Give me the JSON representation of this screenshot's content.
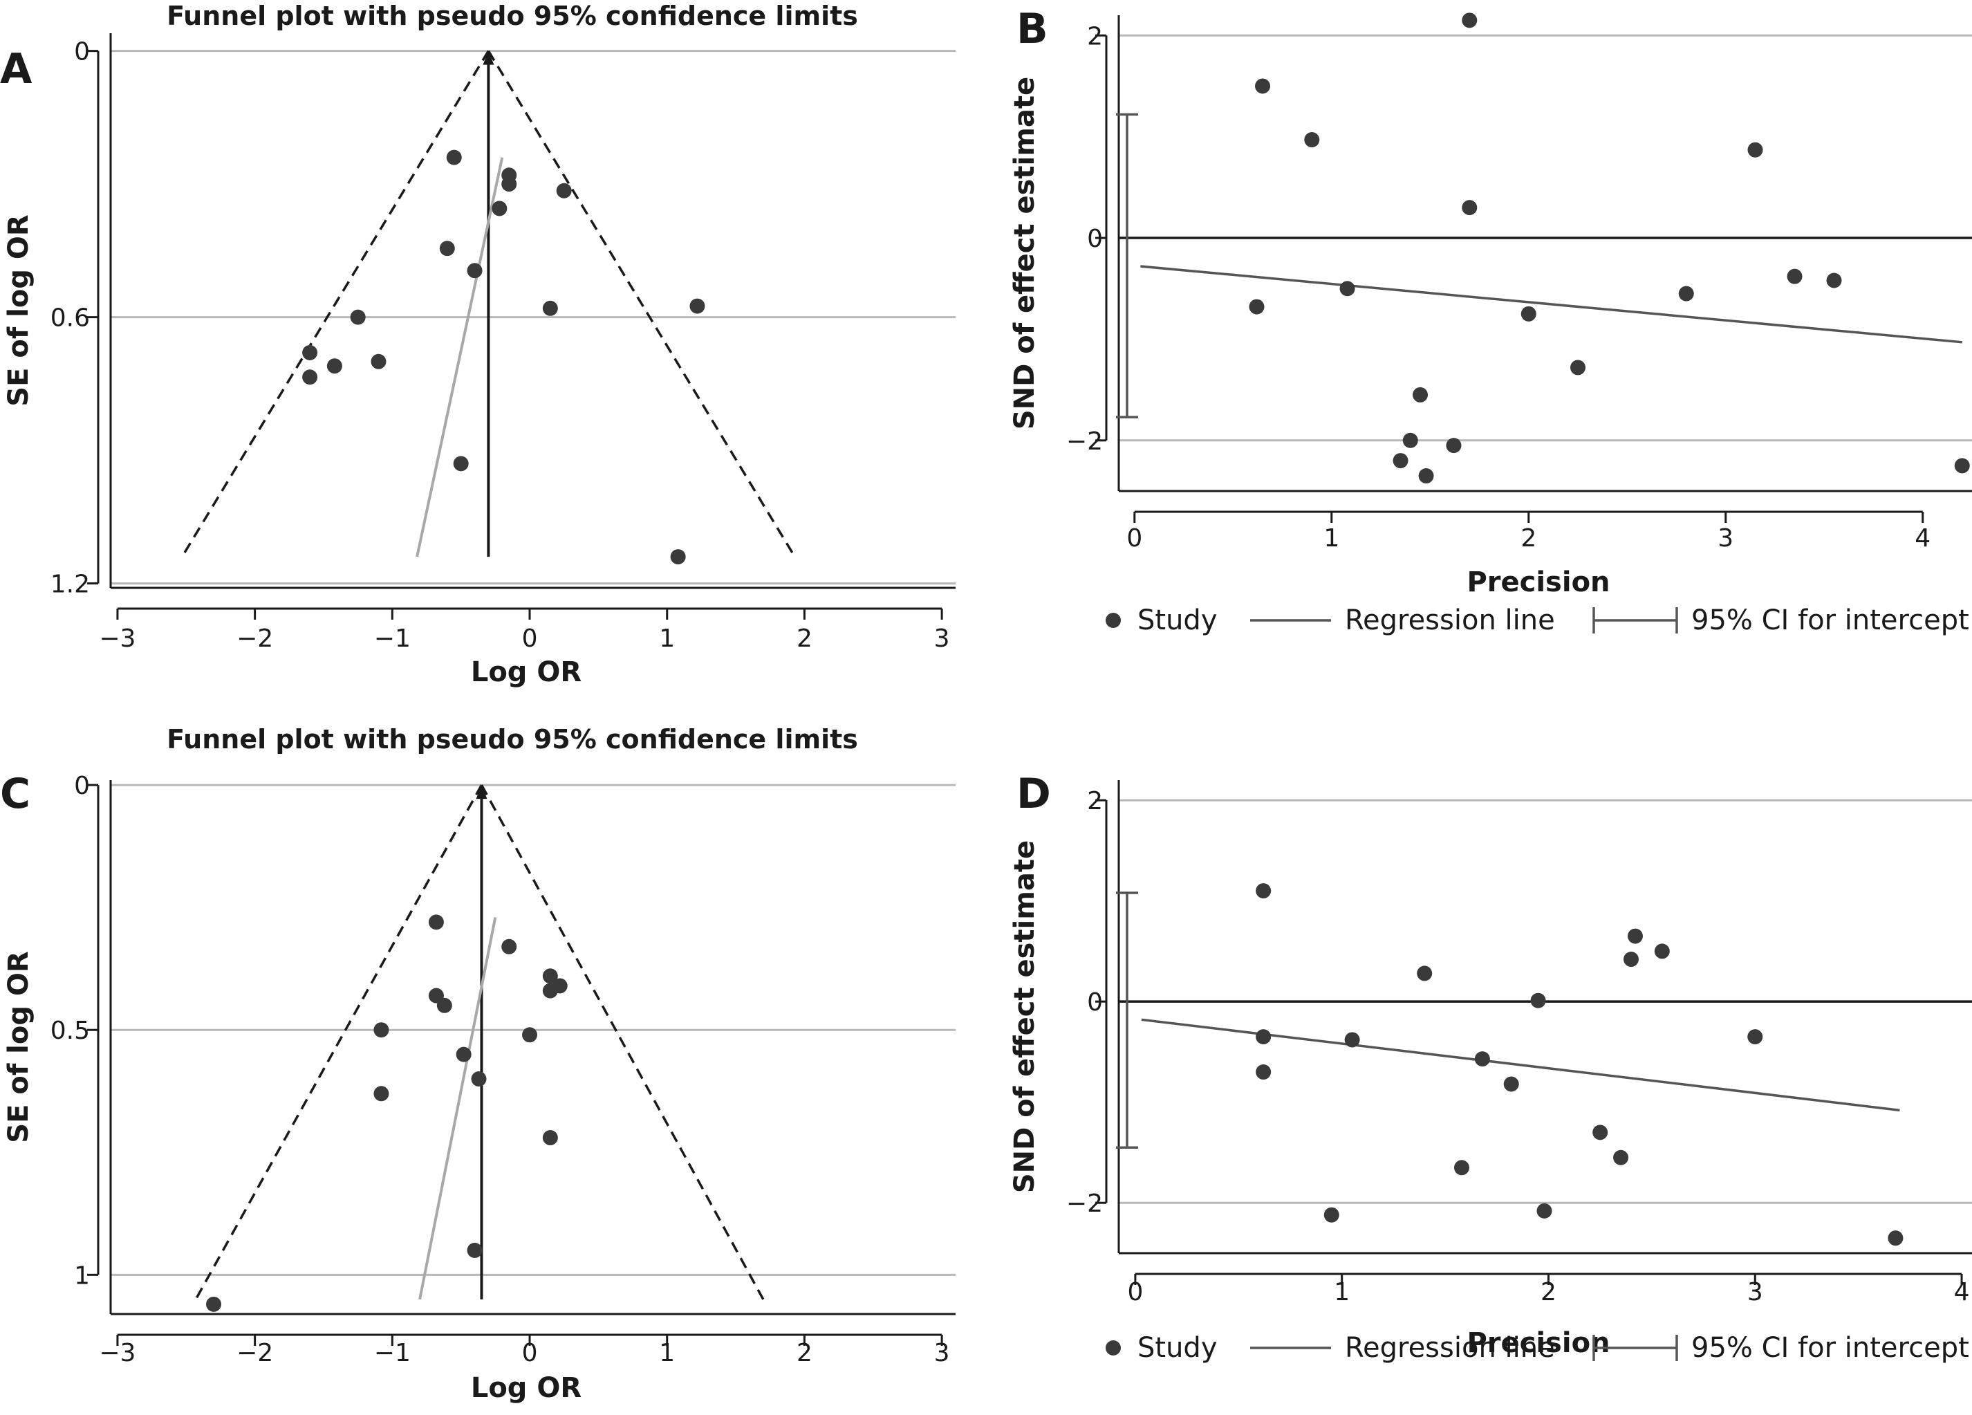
{
  "chart_data": [
    {
      "panel": "A",
      "type": "scatter",
      "title": "Funnel plot with pseudo 95% confidence limits",
      "xlabel": "Log OR",
      "ylabel": "SE of log OR",
      "xlim": [
        -3.05,
        3.1
      ],
      "ylim": [
        1.21,
        -0.04
      ],
      "xticks": [
        -3,
        -2,
        -1,
        0,
        1,
        2,
        3
      ],
      "yticks": [
        0,
        0.6,
        1.2
      ],
      "ytick_labels": [
        "0",
        "0.6",
        "1.2"
      ],
      "grid": "horizontal at y ticks",
      "pooled_log_or": -0.3,
      "funnel_apex": [
        -0.3,
        0
      ],
      "funnel_left_base": [
        -2.53,
        1.14
      ],
      "funnel_right_base": [
        1.93,
        1.14
      ],
      "vertical_line_end": 1.14,
      "regression_line": [
        [
          -0.82,
          1.14
        ],
        [
          -0.2,
          0.24
        ]
      ],
      "points": [
        [
          -1.6,
          0.68
        ],
        [
          -1.6,
          0.735
        ],
        [
          -1.42,
          0.71
        ],
        [
          -1.25,
          0.6
        ],
        [
          -1.1,
          0.7
        ],
        [
          -0.55,
          0.24
        ],
        [
          -0.6,
          0.445
        ],
        [
          -0.4,
          0.495
        ],
        [
          -0.5,
          0.93
        ],
        [
          -0.22,
          0.355
        ],
        [
          -0.15,
          0.28
        ],
        [
          -0.15,
          0.3
        ],
        [
          0.25,
          0.315
        ],
        [
          0.15,
          0.58
        ],
        [
          1.22,
          0.575
        ],
        [
          1.08,
          1.14
        ]
      ]
    },
    {
      "panel": "B",
      "type": "scatter",
      "xlabel": "Precision",
      "ylabel": "SND of effect estimate",
      "xlim": [
        -0.08,
        4.25
      ],
      "ylim": [
        -2.5,
        2.2
      ],
      "xticks": [
        0,
        1,
        2,
        3,
        4
      ],
      "yticks": [
        -2,
        0,
        2
      ],
      "ytick_labels": [
        "−2",
        "0",
        "2"
      ],
      "grid": "horizontal at ±2",
      "zero_line": 0,
      "regression_line": [
        [
          0.03,
          -0.28
        ],
        [
          4.2,
          -1.03
        ]
      ],
      "ci_intercept": [
        -1.77,
        1.22
      ],
      "points": [
        [
          0.65,
          1.5
        ],
        [
          0.9,
          0.97
        ],
        [
          1.7,
          2.15
        ],
        [
          1.7,
          0.3
        ],
        [
          3.15,
          0.87
        ],
        [
          0.62,
          -0.68
        ],
        [
          1.08,
          -0.5
        ],
        [
          2.0,
          -0.75
        ],
        [
          2.8,
          -0.55
        ],
        [
          3.35,
          -0.38
        ],
        [
          3.55,
          -0.42
        ],
        [
          2.25,
          -1.28
        ],
        [
          1.45,
          -1.55
        ],
        [
          1.4,
          -2.0
        ],
        [
          1.35,
          -2.2
        ],
        [
          1.48,
          -2.35
        ],
        [
          1.62,
          -2.05
        ],
        [
          4.2,
          -2.25
        ]
      ],
      "legend": [
        "Study",
        "Regression line",
        "95% CI for intercept"
      ],
      "legend_position": "bottom"
    },
    {
      "panel": "C",
      "type": "scatter",
      "title": "Funnel plot with pseudo 95% confidence limits",
      "xlabel": "Log OR",
      "ylabel": "SE of log OR",
      "xlim": [
        -3.05,
        3.1
      ],
      "ylim": [
        1.08,
        -0.01
      ],
      "xticks": [
        -3,
        -2,
        -1,
        0,
        1,
        2,
        3
      ],
      "yticks": [
        0,
        0.5,
        1
      ],
      "ytick_labels": [
        "0",
        "0.5",
        "1"
      ],
      "grid": "horizontal at y ticks",
      "pooled_log_or": -0.35,
      "funnel_apex": [
        -0.35,
        0
      ],
      "funnel_left_base": [
        -2.43,
        1.05
      ],
      "funnel_right_base": [
        1.7,
        1.05
      ],
      "vertical_line_end": 1.05,
      "regression_line": [
        [
          -0.8,
          1.05
        ],
        [
          -0.25,
          0.27
        ]
      ],
      "points": [
        [
          -2.3,
          1.06
        ],
        [
          -1.08,
          0.5
        ],
        [
          -1.08,
          0.63
        ],
        [
          -0.68,
          0.28
        ],
        [
          -0.68,
          0.43
        ],
        [
          -0.62,
          0.45
        ],
        [
          -0.48,
          0.55
        ],
        [
          -0.37,
          0.6
        ],
        [
          -0.4,
          0.95
        ],
        [
          -0.15,
          0.33
        ],
        [
          0.15,
          0.39
        ],
        [
          0.15,
          0.42
        ],
        [
          0.22,
          0.41
        ],
        [
          0.0,
          0.51
        ],
        [
          0.15,
          0.72
        ]
      ]
    },
    {
      "panel": "D",
      "type": "scatter",
      "xlabel": "Precision",
      "ylabel": "SND of effect estimate",
      "xlim": [
        -0.08,
        4.05
      ],
      "ylim": [
        -2.5,
        2.2
      ],
      "xticks": [
        0,
        1,
        2,
        3,
        4
      ],
      "yticks": [
        -2,
        0,
        2
      ],
      "ytick_labels": [
        "−2",
        "0",
        "2"
      ],
      "grid": "horizontal at ±2",
      "zero_line": 0,
      "regression_line": [
        [
          0.03,
          -0.18
        ],
        [
          3.7,
          -1.08
        ]
      ],
      "ci_intercept": [
        -1.45,
        1.08
      ],
      "points": [
        [
          0.62,
          1.1
        ],
        [
          0.62,
          -0.35
        ],
        [
          0.62,
          -0.7
        ],
        [
          1.05,
          -0.38
        ],
        [
          1.4,
          0.28
        ],
        [
          1.68,
          -0.57
        ],
        [
          1.82,
          -0.82
        ],
        [
          1.95,
          0.01
        ],
        [
          1.58,
          -1.65
        ],
        [
          0.95,
          -2.12
        ],
        [
          1.98,
          -2.08
        ],
        [
          2.25,
          -1.3
        ],
        [
          2.35,
          -1.55
        ],
        [
          2.42,
          0.65
        ],
        [
          2.4,
          0.42
        ],
        [
          2.55,
          0.5
        ],
        [
          3.0,
          -0.35
        ],
        [
          3.68,
          -2.35
        ]
      ],
      "legend": [
        "Study",
        "Regression line",
        "95% CI for intercept"
      ],
      "legend_position": "bottom"
    }
  ],
  "colors": {
    "point": "#3a3a3a",
    "axis": "#1a1a1a",
    "grid": "#b8b8b8",
    "funnel": "#1a1a1a",
    "pooled_line": "#1a1a1a",
    "regression_grey": "#a8a8a8",
    "regression_dark": "#555555",
    "zero_line": "#1a1a1a"
  }
}
